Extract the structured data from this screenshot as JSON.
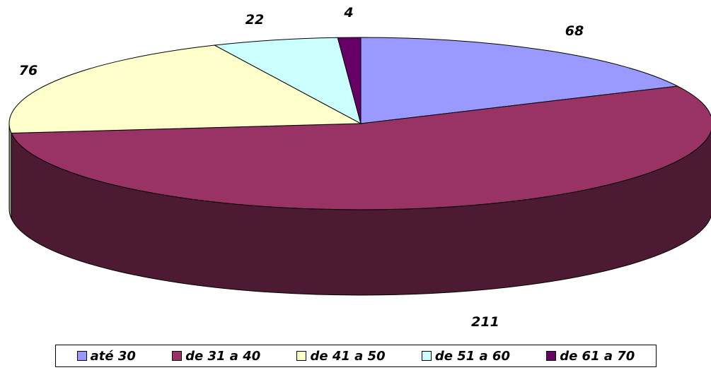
{
  "chart_data": {
    "type": "pie",
    "title": "",
    "three_d": true,
    "categories": [
      "até 30",
      "de 31 a 40",
      "de 41 a 50",
      "de 51 a 60",
      "de 61 a 70"
    ],
    "values": [
      68,
      211,
      76,
      22,
      4
    ],
    "colors": [
      "#9999ff",
      "#993366",
      "#ffffcc",
      "#ccffff",
      "#660066"
    ],
    "side_colors": [
      "#5c5c99",
      "#4d1a33",
      "#999980",
      "#7a9999",
      "#330033"
    ],
    "data_labels": [
      "68",
      "211",
      "76",
      "22",
      "4"
    ],
    "legend": {
      "placement": "bottom",
      "entries": [
        "até 30",
        "de 31 a 40",
        "de 41 a 50",
        "de 51 a 60",
        "de 61 a 70"
      ]
    }
  }
}
